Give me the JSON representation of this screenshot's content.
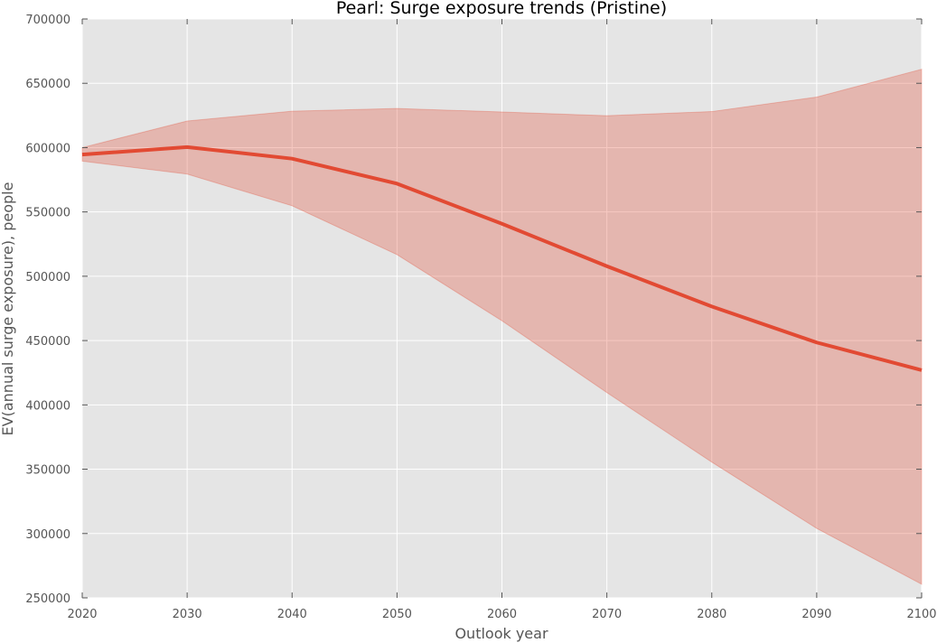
{
  "chart_data": {
    "type": "line",
    "title": "Pearl: Surge exposure trends (Pristine)",
    "xlabel": "Outlook year",
    "ylabel": "EV(annual surge exposure), people",
    "xlim": [
      2020,
      2100
    ],
    "ylim": [
      250000,
      700000
    ],
    "x_ticks": [
      2020,
      2030,
      2040,
      2050,
      2060,
      2070,
      2080,
      2090,
      2100
    ],
    "y_ticks": [
      250000,
      300000,
      350000,
      400000,
      450000,
      500000,
      550000,
      600000,
      650000,
      700000
    ],
    "grid": true,
    "x": [
      2020,
      2030,
      2040,
      2050,
      2060,
      2070,
      2080,
      2090,
      2100
    ],
    "series": [
      {
        "values": [
          594600,
          600400,
          591400,
          572000,
          540800,
          507800,
          476500,
          448500,
          427000
        ]
      }
    ],
    "band": {
      "upper": [
        600000,
        620700,
        628300,
        630400,
        627700,
        624800,
        628000,
        639300,
        660900
      ],
      "lower": [
        589500,
        579400,
        554800,
        516800,
        465400,
        409600,
        355500,
        304000,
        260600
      ]
    },
    "colors": {
      "line": "#e24a33",
      "band": "#e24a33",
      "plot_background": "#e5e5e5",
      "grid": "#ffffff"
    }
  }
}
